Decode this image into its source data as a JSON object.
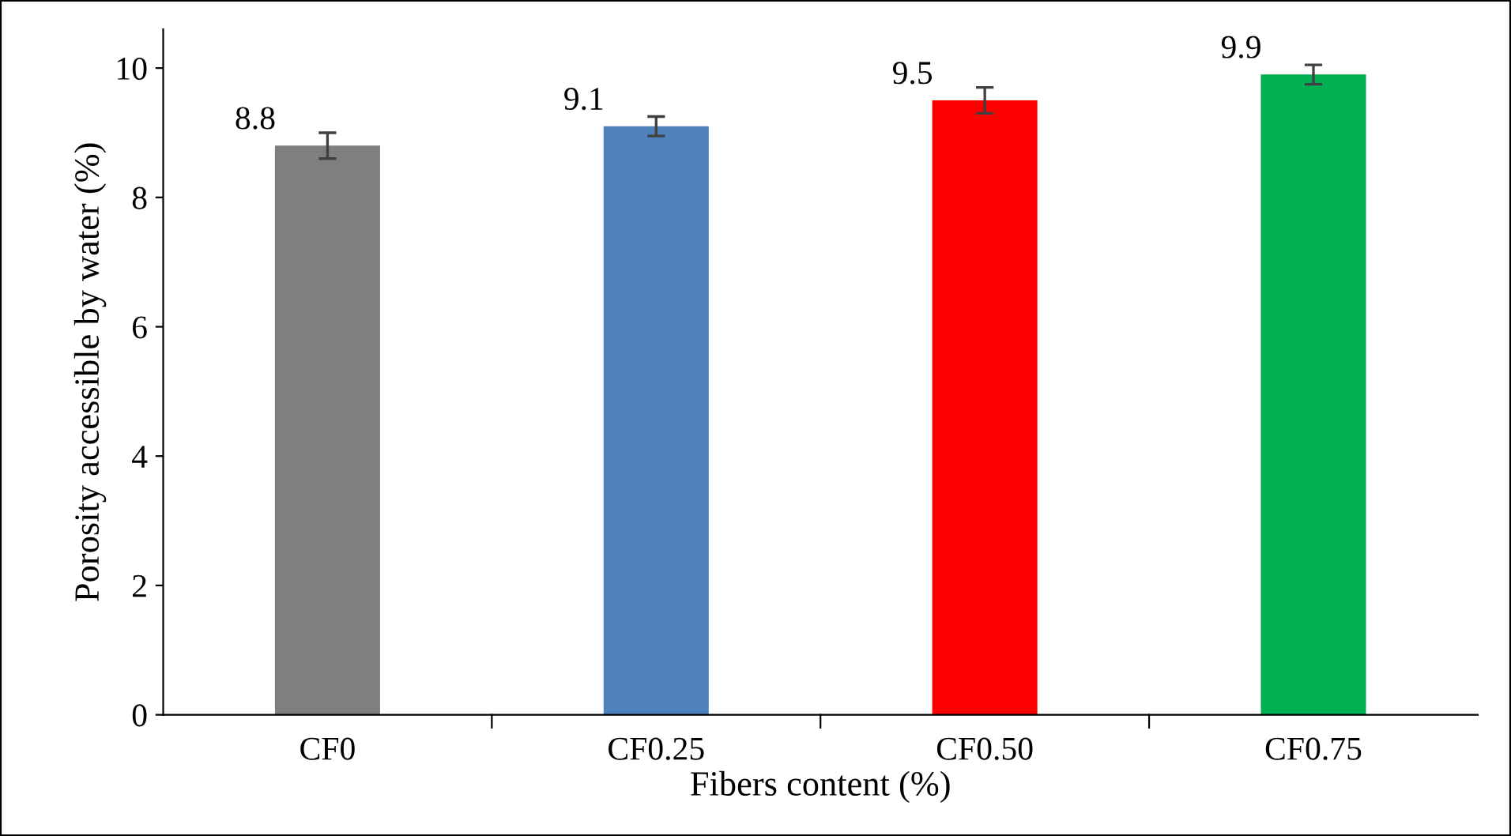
{
  "chart_data": {
    "type": "bar",
    "xlabel": "Fibers content (%)",
    "ylabel": "Porosity accessible by water (%)",
    "categories": [
      "CF0",
      "CF0.25",
      "CF0.50",
      "CF0.75"
    ],
    "values": [
      8.8,
      9.1,
      9.5,
      9.9
    ],
    "colors": [
      "#7f7f7f",
      "#4f81bd",
      "#ff0000",
      "#00b050"
    ],
    "errors": [
      0.2,
      0.15,
      0.2,
      0.15
    ],
    "data_labels": true,
    "ylim": [
      0,
      10.6
    ],
    "yticks": [
      0,
      2,
      4,
      6,
      8,
      10
    ],
    "grid": false,
    "legend": false
  }
}
